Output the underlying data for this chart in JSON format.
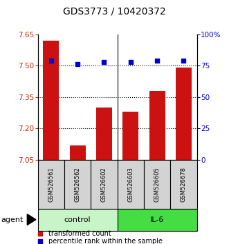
{
  "title": "GDS3773 / 10420372",
  "samples": [
    "GSM526561",
    "GSM526562",
    "GSM526602",
    "GSM526603",
    "GSM526605",
    "GSM526678"
  ],
  "red_values": [
    7.62,
    7.12,
    7.3,
    7.28,
    7.38,
    7.49
  ],
  "blue_values": [
    79,
    76,
    78,
    78,
    79,
    79
  ],
  "ylim_left": [
    7.05,
    7.65
  ],
  "ylim_right": [
    0,
    100
  ],
  "yticks_left": [
    7.05,
    7.2,
    7.35,
    7.5,
    7.65
  ],
  "yticks_right": [
    0,
    25,
    50,
    75,
    100
  ],
  "ytick_labels_right": [
    "0",
    "25",
    "50",
    "75",
    "100%"
  ],
  "control_color_light": "#c8f5c8",
  "control_color": "#c8f5c8",
  "il6_color": "#44dd44",
  "sample_box_color": "#d3d3d3",
  "bar_color": "#cc1111",
  "square_color": "#0000cc",
  "bar_width": 0.6,
  "title_fontsize": 10,
  "tick_fontsize": 7.5,
  "sample_fontsize": 6,
  "group_fontsize": 8,
  "legend_fontsize": 7,
  "grid_yticks": [
    7.2,
    7.35,
    7.5
  ]
}
